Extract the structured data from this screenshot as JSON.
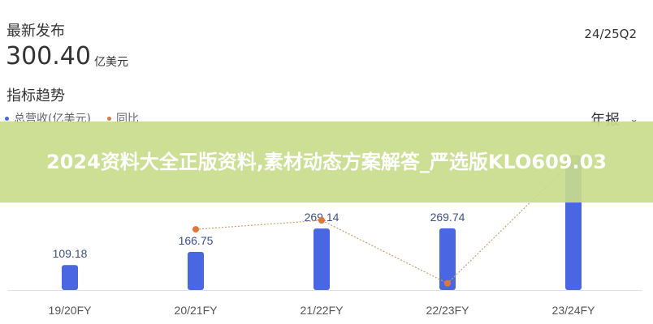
{
  "header": {
    "latest_label": "最新发布",
    "latest_value": "300.40",
    "latest_unit": "亿美元",
    "period": "24/25Q2"
  },
  "trend": {
    "title": "指标趋势",
    "period_select": "年报"
  },
  "banner": {
    "text": "2024资料大全正版资料,素材动态方案解答_严选版KLO609.03"
  },
  "chart_data": {
    "type": "bar+line",
    "categories": [
      "19/20FY",
      "20/21FY",
      "21/22FY",
      "22/23FY",
      "23/24FY"
    ],
    "series": [
      {
        "name": "总营收(亿美元)",
        "type": "bar",
        "color": "#4a67e3",
        "values": [
          109.18,
          166.75,
          269.14,
          269.74,
          590
        ],
        "labels": [
          "109.18",
          "166.75",
          "269.14",
          "269.74",
          null
        ]
      },
      {
        "name": "同比",
        "type": "line",
        "color": "#e0773a",
        "values": [
          null,
          52.7,
          61.4,
          0.2,
          120
        ]
      }
    ],
    "grid": false,
    "legend": "top-left"
  }
}
